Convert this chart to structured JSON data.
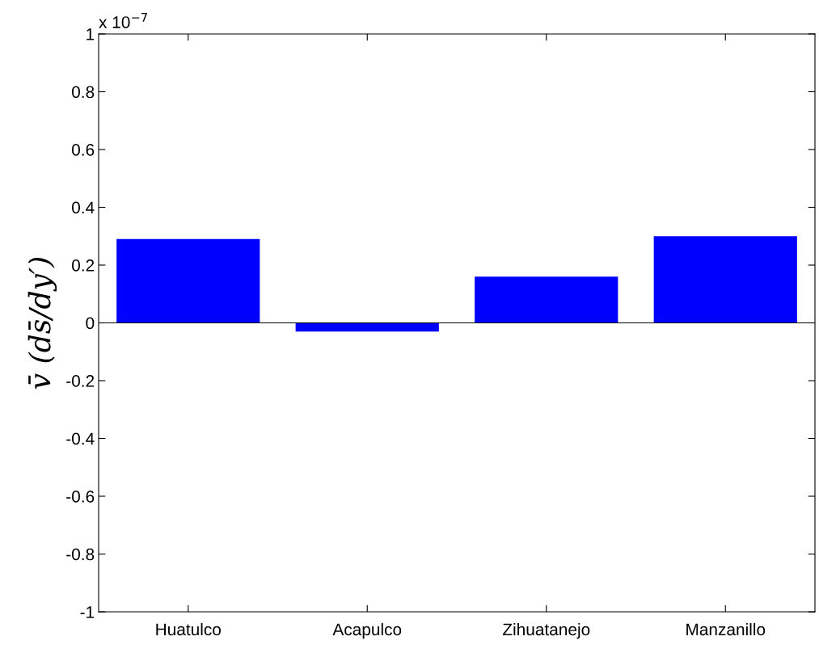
{
  "chart_data": {
    "type": "bar",
    "categories": [
      "Huatulco",
      "Acapulco",
      "Zihuatanejo",
      "Manzanillo"
    ],
    "values": [
      0.29,
      -0.03,
      0.16,
      0.3
    ],
    "color": "#0000ff",
    "ylabel": "v̄ (ds̄/dy′)",
    "annotations": [
      "x 10$^{−7}$"
    ],
    "ylim": [
      -1,
      1
    ],
    "yticks": [
      -1,
      -0.8,
      -0.6,
      -0.4,
      -0.2,
      0,
      0.2,
      0.4,
      0.6,
      0.8,
      1
    ],
    "ref_lines": [
      {
        "axis": "y",
        "value": 0,
        "color": "#000000"
      }
    ],
    "grid": false,
    "legend": false
  }
}
